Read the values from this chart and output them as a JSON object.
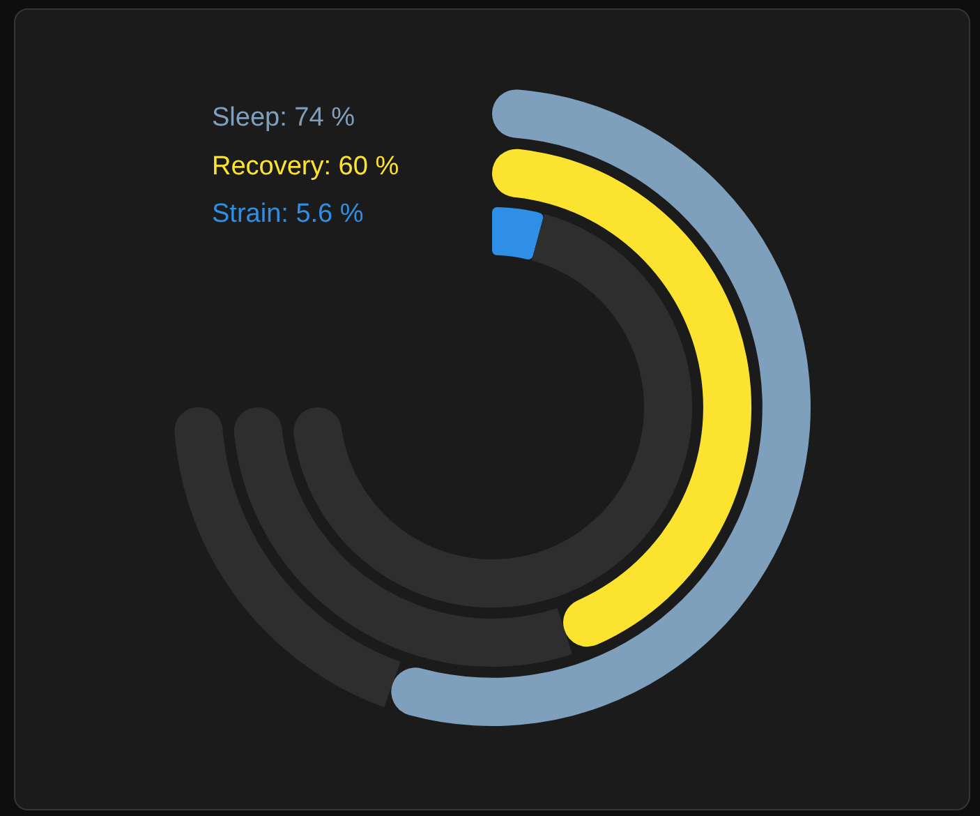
{
  "chart_data": {
    "type": "donut",
    "series": [
      {
        "name": "Sleep: 74 %",
        "colors": [
          "#7ea0bc",
          "#2e2e2e"
        ],
        "values": [
          74,
          26
        ]
      },
      {
        "name": "Recovery: 60 %",
        "colors": [
          "#fbe32f",
          "#2e2e2e"
        ],
        "values": [
          60,
          40
        ]
      },
      {
        "name": "Strain: 5.6 %",
        "colors": [
          "#2f8fe6",
          "#2e2e2e"
        ],
        "values": [
          5.6,
          94.4
        ]
      }
    ],
    "legend": "top left"
  }
}
